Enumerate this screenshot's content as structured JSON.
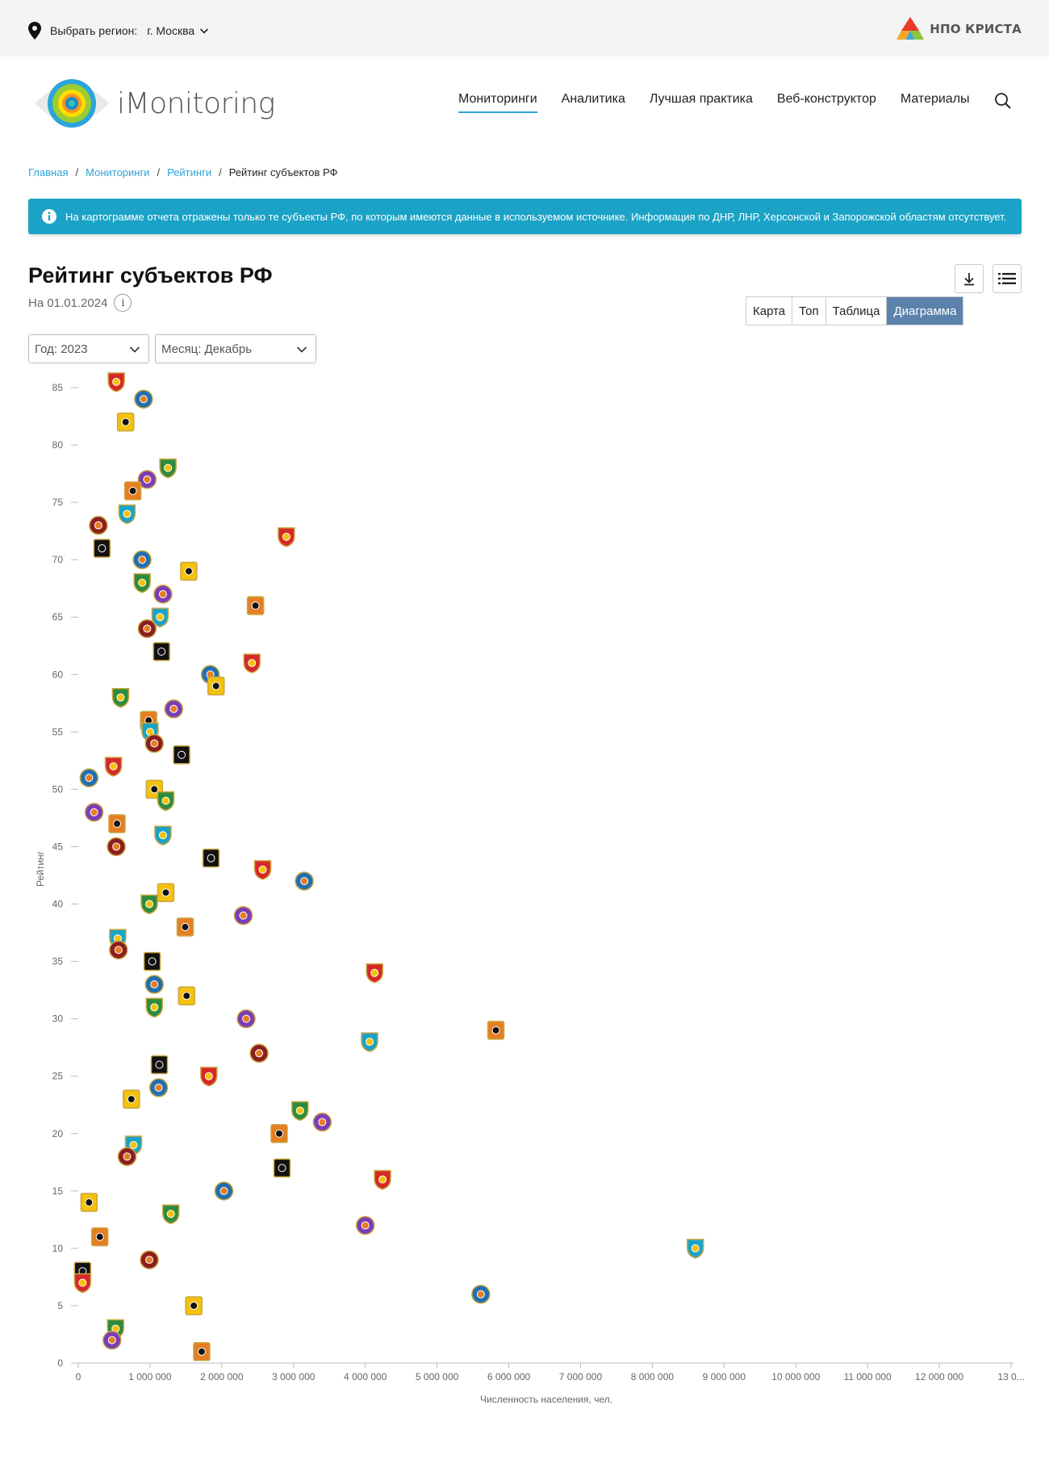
{
  "region": {
    "label": "Выбрать регион:",
    "value": "г. Москва",
    "pin_icon": "map-pin-icon"
  },
  "partner_logo": "НПО КРИСТА",
  "brand": "iMonitoring",
  "nav": [
    {
      "label": "Мониторинги",
      "active": true
    },
    {
      "label": "Аналитика",
      "active": false
    },
    {
      "label": "Лучшая практика",
      "active": false
    },
    {
      "label": "Веб-конструктор",
      "active": false
    },
    {
      "label": "Материалы",
      "active": false
    }
  ],
  "breadcrumbs": [
    {
      "label": "Главная",
      "link": true
    },
    {
      "label": "Мониторинги",
      "link": true
    },
    {
      "label": "Рейтинги",
      "link": true
    },
    {
      "label": "Рейтинг субъектов РФ",
      "link": false
    }
  ],
  "alert": "На картограмме отчета отражены только те субъекты РФ, по которым имеются данные в используемом источнике. Информация по ДНР, ЛНР, Херсонской и Запорожской областям отсутствует.",
  "page_title": "Рейтинг субъектов РФ",
  "date": "На 01.01.2024",
  "info_glyph": "i",
  "view_tabs": [
    {
      "label": "Карта",
      "active": false
    },
    {
      "label": "Топ",
      "active": false
    },
    {
      "label": "Таблица",
      "active": false
    },
    {
      "label": "Диаграмма",
      "active": true
    }
  ],
  "filters": {
    "year": "Год: 2023",
    "month": "Месяц: Декабрь"
  },
  "colors": {
    "accent": "#2fa4d8",
    "alert_bg": "#1aa3c6",
    "tab_active": "#5b82ab"
  },
  "chart_data": {
    "type": "scatter",
    "title": "",
    "xlabel": "Численность населения, чел.",
    "ylabel": "Рейтинг",
    "xlim": [
      0,
      13000000
    ],
    "ylim": [
      0,
      85
    ],
    "xticks": [
      "0",
      "1 000 000",
      "2 000 000",
      "3 000 000",
      "4 000 000",
      "5 000 000",
      "6 000 000",
      "7 000 000",
      "8 000 000",
      "9 000 000",
      "10 000 000",
      "11 000 000",
      "12 000 000",
      "13 0..."
    ],
    "yticks": [
      "0",
      "5",
      "10",
      "15",
      "20",
      "25",
      "30",
      "35",
      "40",
      "45",
      "50",
      "55",
      "60",
      "65",
      "70",
      "75",
      "80",
      "85"
    ],
    "grid": false,
    "legend": "none",
    "marker": "region-coat-of-arms",
    "points": [
      {
        "x": 530000,
        "y": 85.5
      },
      {
        "x": 910000,
        "y": 84
      },
      {
        "x": 660000,
        "y": 82
      },
      {
        "x": 1250000,
        "y": 78
      },
      {
        "x": 960000,
        "y": 77
      },
      {
        "x": 760000,
        "y": 76
      },
      {
        "x": 680000,
        "y": 74
      },
      {
        "x": 280000,
        "y": 73
      },
      {
        "x": 330000,
        "y": 71
      },
      {
        "x": 2900000,
        "y": 72
      },
      {
        "x": 890000,
        "y": 70
      },
      {
        "x": 1540000,
        "y": 69
      },
      {
        "x": 890000,
        "y": 68
      },
      {
        "x": 1180000,
        "y": 67
      },
      {
        "x": 2470000,
        "y": 66
      },
      {
        "x": 1140000,
        "y": 65
      },
      {
        "x": 960000,
        "y": 64
      },
      {
        "x": 1160000,
        "y": 62
      },
      {
        "x": 2420000,
        "y": 61
      },
      {
        "x": 1840000,
        "y": 60
      },
      {
        "x": 1920000,
        "y": 59
      },
      {
        "x": 590000,
        "y": 58
      },
      {
        "x": 1330000,
        "y": 57
      },
      {
        "x": 980000,
        "y": 56
      },
      {
        "x": 1000000,
        "y": 55
      },
      {
        "x": 1060000,
        "y": 54
      },
      {
        "x": 1440000,
        "y": 53
      },
      {
        "x": 490000,
        "y": 52
      },
      {
        "x": 150000,
        "y": 51
      },
      {
        "x": 1060000,
        "y": 50
      },
      {
        "x": 1220000,
        "y": 49
      },
      {
        "x": 220000,
        "y": 48
      },
      {
        "x": 540000,
        "y": 47
      },
      {
        "x": 1180000,
        "y": 46
      },
      {
        "x": 530000,
        "y": 45
      },
      {
        "x": 1850000,
        "y": 44
      },
      {
        "x": 2570000,
        "y": 43
      },
      {
        "x": 3150000,
        "y": 42
      },
      {
        "x": 1220000,
        "y": 41
      },
      {
        "x": 990000,
        "y": 40
      },
      {
        "x": 2300000,
        "y": 39
      },
      {
        "x": 1490000,
        "y": 38
      },
      {
        "x": 550000,
        "y": 37
      },
      {
        "x": 560000,
        "y": 36
      },
      {
        "x": 1030000,
        "y": 35
      },
      {
        "x": 4130000,
        "y": 34
      },
      {
        "x": 1060000,
        "y": 33
      },
      {
        "x": 1510000,
        "y": 32
      },
      {
        "x": 1060000,
        "y": 31
      },
      {
        "x": 2340000,
        "y": 30
      },
      {
        "x": 5820000,
        "y": 29
      },
      {
        "x": 4060000,
        "y": 28
      },
      {
        "x": 2520000,
        "y": 27
      },
      {
        "x": 1130000,
        "y": 26
      },
      {
        "x": 1820000,
        "y": 25
      },
      {
        "x": 1120000,
        "y": 24
      },
      {
        "x": 740000,
        "y": 23
      },
      {
        "x": 3090000,
        "y": 22
      },
      {
        "x": 3400000,
        "y": 21
      },
      {
        "x": 2800000,
        "y": 20
      },
      {
        "x": 770000,
        "y": 19
      },
      {
        "x": 680000,
        "y": 18
      },
      {
        "x": 2840000,
        "y": 17
      },
      {
        "x": 4240000,
        "y": 16
      },
      {
        "x": 2030000,
        "y": 15
      },
      {
        "x": 150000,
        "y": 14
      },
      {
        "x": 1290000,
        "y": 13
      },
      {
        "x": 4000000,
        "y": 12
      },
      {
        "x": 300000,
        "y": 11
      },
      {
        "x": 8600000,
        "y": 10
      },
      {
        "x": 990000,
        "y": 9
      },
      {
        "x": 60000,
        "y": 8
      },
      {
        "x": 60000,
        "y": 7
      },
      {
        "x": 5610000,
        "y": 6
      },
      {
        "x": 1610000,
        "y": 5
      },
      {
        "x": 520000,
        "y": 3
      },
      {
        "x": 470000,
        "y": 2
      },
      {
        "x": 1720000,
        "y": 1
      }
    ]
  }
}
